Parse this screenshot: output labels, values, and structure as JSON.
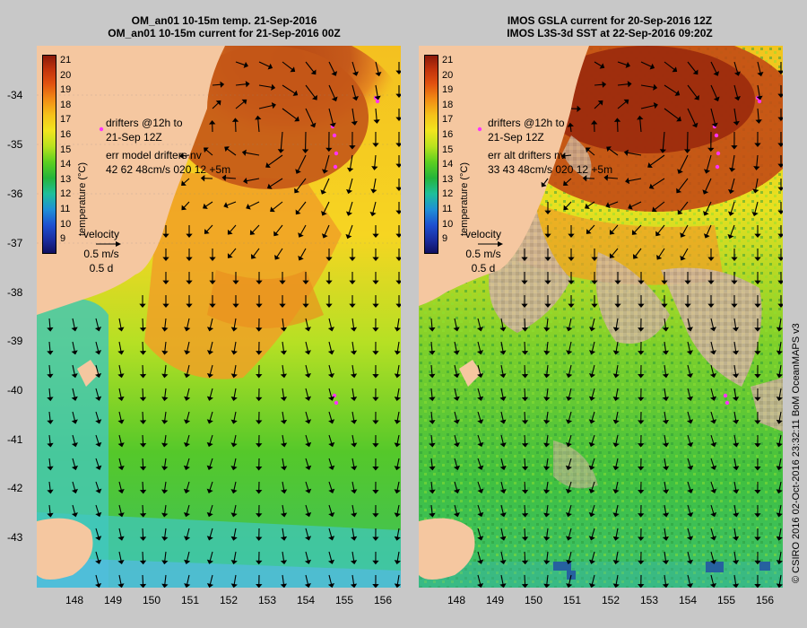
{
  "left_panel": {
    "title_line1": "OM_an01 10-15m temp. 21-Sep-2016",
    "title_line2": "OM_an01 10-15m current for 21-Sep-2016 00Z",
    "drifters_line1": "drifters @12h to",
    "drifters_line2": "21-Sep 12Z",
    "err_line1": "err model drifters nv",
    "err_line2": "42 62 48cm/s 020 12 +5m"
  },
  "right_panel": {
    "title_line1": "IMOS GSLA current for 20-Sep-2016 12Z",
    "title_line2": "IMOS L3S-3d SST at 22-Sep-2016 09:20Z",
    "drifters_line1": "drifters @12h to",
    "drifters_line2": "21-Sep 12Z",
    "err_line1": "err alt drifters nv",
    "err_line2": "33 43 48cm/s 020 12 +5m"
  },
  "velocity": {
    "label": "velocity",
    "speed": "0.5 m/s",
    "duration": "0.5 d"
  },
  "colorbar": {
    "title": "temperature (°C)",
    "ticks": [
      "21",
      "20",
      "19",
      "18",
      "17",
      "16",
      "15",
      "14",
      "13",
      "12",
      "11",
      "10",
      "9"
    ]
  },
  "axes": {
    "lat_ticks": [
      "-34",
      "-35",
      "-36",
      "-37",
      "-38",
      "-39",
      "-40",
      "-41",
      "-42",
      "-43"
    ],
    "lon_ticks": [
      "148",
      "149",
      "150",
      "151",
      "152",
      "153",
      "154",
      "155",
      "156"
    ]
  },
  "credit": "© CSIRO 2016  02-Oct-2016 23:32:11 BoM OceanMAPS v3",
  "colors": {
    "land": "#f5c7a0",
    "warm_core": "#c65a1a",
    "no_data": "#c9b09a",
    "drifter": "#ff33ff"
  }
}
